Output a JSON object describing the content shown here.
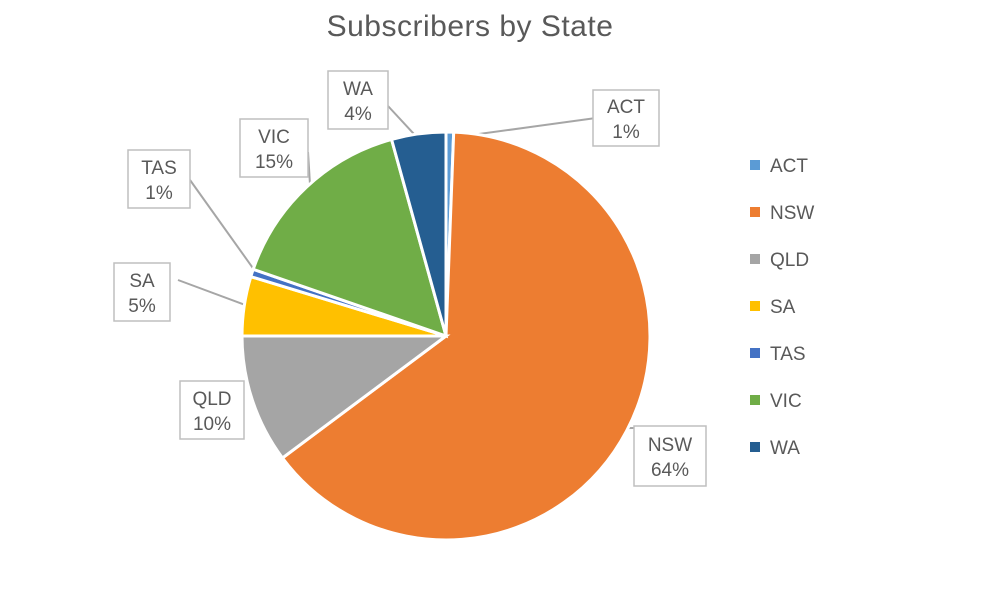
{
  "chart_data": {
    "type": "pie",
    "title": "Subscribers by State",
    "legend_position": "right",
    "categories": [
      "ACT",
      "NSW",
      "QLD",
      "SA",
      "TAS",
      "VIC",
      "WA"
    ],
    "values": [
      0.6,
      64.2,
      10.2,
      4.7,
      0.6,
      15.4,
      4.3
    ],
    "data_labels": [
      "1%",
      "64%",
      "10%",
      "5%",
      "1%",
      "15%",
      "4%"
    ],
    "colors": [
      "#5B9BD5",
      "#ED7D31",
      "#A5A5A5",
      "#FFC000",
      "#4472C4",
      "#70AD47",
      "#255E91"
    ]
  }
}
